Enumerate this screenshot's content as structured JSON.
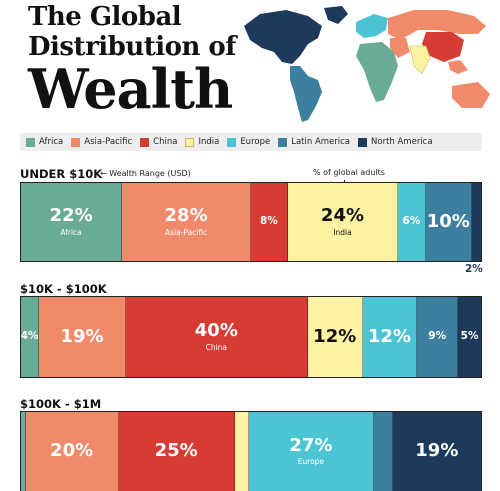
{
  "title": {
    "line1": "The Global",
    "line2": "Distribution of",
    "line3": "Wealth"
  },
  "colors": {
    "Africa": "#6aab96",
    "Asia-Pacific": "#f08a6a",
    "China": "#d63c33",
    "India": "#fdf3a3",
    "Europe": "#4dc4d4",
    "Latin America": "#3d7f9e",
    "North America": "#1d3a5c"
  },
  "legend": [
    "Africa",
    "Asia-Pacific",
    "China",
    "India",
    "Europe",
    "Latin America",
    "North America"
  ],
  "annotations": {
    "wealth_range": "Wealth Range (USD)",
    "global_adults": "% of global adults"
  },
  "chart_data": {
    "type": "bar",
    "layout": "stacked-100",
    "categories": [
      "UNDER $10K",
      "$10K - $100K",
      "$100K - $1M"
    ],
    "series": [
      {
        "name": "Africa",
        "values": [
          22,
          4,
          1
        ]
      },
      {
        "name": "Asia-Pacific",
        "values": [
          28,
          19,
          20
        ]
      },
      {
        "name": "China",
        "values": [
          8,
          40,
          25
        ]
      },
      {
        "name": "India",
        "values": [
          24,
          12,
          3
        ]
      },
      {
        "name": "Europe",
        "values": [
          6,
          12,
          27
        ]
      },
      {
        "name": "Latin America",
        "values": [
          10,
          9,
          4
        ]
      },
      {
        "name": "North America",
        "values": [
          2,
          5,
          19
        ]
      }
    ],
    "labels": [
      [
        "22%",
        "28%",
        "8%",
        "24%",
        "6%",
        "10%",
        "2%"
      ],
      [
        "4%",
        "19%",
        "40%",
        "12%",
        "12%",
        "9%",
        "5%"
      ],
      [
        "",
        "20%",
        "25%",
        "",
        "27%",
        "",
        "19%"
      ]
    ],
    "segment_names": [
      [
        "Africa",
        "Asia-Pacific",
        "",
        "India",
        "",
        "",
        ""
      ],
      [
        "",
        "",
        "China",
        "",
        "",
        "",
        ""
      ],
      [
        "",
        "",
        "",
        "",
        "Europe",
        "",
        ""
      ]
    ]
  }
}
